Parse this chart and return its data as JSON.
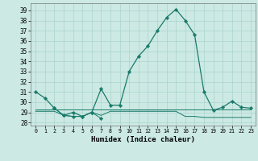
{
  "title": "",
  "xlabel": "Humidex (Indice chaleur)",
  "bg_color": "#cce9e4",
  "grid_color": "#aad4cc",
  "line_color": "#1a7a6a",
  "xlim": [
    -0.5,
    23.5
  ],
  "ylim": [
    27.7,
    39.7
  ],
  "yticks": [
    28,
    29,
    30,
    31,
    32,
    33,
    34,
    35,
    36,
    37,
    38,
    39
  ],
  "xticks": [
    0,
    1,
    2,
    3,
    4,
    5,
    6,
    7,
    8,
    9,
    10,
    11,
    12,
    13,
    14,
    15,
    16,
    17,
    18,
    19,
    20,
    21,
    22,
    23
  ],
  "main_x": [
    0,
    1,
    2,
    3,
    4,
    5,
    6,
    7,
    8,
    9,
    10,
    11,
    12,
    13,
    14,
    15,
    16,
    17,
    18,
    19,
    20,
    21,
    22,
    23
  ],
  "main_y": [
    31.0,
    30.4,
    29.4,
    28.7,
    29.0,
    28.6,
    29.0,
    31.3,
    29.7,
    29.7,
    33.0,
    34.5,
    35.5,
    37.0,
    38.3,
    39.1,
    38.0,
    36.6,
    31.0,
    29.2,
    29.5,
    30.1,
    29.5,
    29.4
  ],
  "line1_x": [
    0,
    1,
    2,
    3,
    4,
    5,
    6,
    7,
    8,
    9,
    10,
    11,
    12,
    13,
    14,
    15,
    16,
    17,
    18,
    19,
    20,
    21,
    22,
    23
  ],
  "line1_y": [
    29.3,
    29.3,
    29.3,
    29.3,
    29.3,
    29.3,
    29.3,
    29.3,
    29.3,
    29.3,
    29.3,
    29.3,
    29.3,
    29.3,
    29.3,
    29.3,
    29.3,
    29.3,
    29.3,
    29.3,
    29.3,
    29.3,
    29.3,
    29.3
  ],
  "line2_x": [
    0,
    1,
    2,
    3,
    4,
    5,
    6,
    7,
    8,
    9,
    10,
    11,
    12,
    13,
    14,
    15,
    16,
    17,
    18,
    19,
    20,
    21,
    22,
    23
  ],
  "line2_y": [
    29.1,
    29.1,
    29.1,
    28.7,
    28.6,
    28.6,
    29.0,
    28.7,
    29.1,
    29.1,
    29.1,
    29.1,
    29.1,
    29.1,
    29.1,
    29.1,
    28.6,
    28.6,
    28.5,
    28.5,
    28.5,
    28.5,
    28.5,
    28.5
  ],
  "mini_x": [
    2,
    3,
    4,
    5,
    6,
    7
  ],
  "mini_y": [
    29.4,
    28.7,
    28.6,
    28.6,
    29.0,
    28.4
  ]
}
